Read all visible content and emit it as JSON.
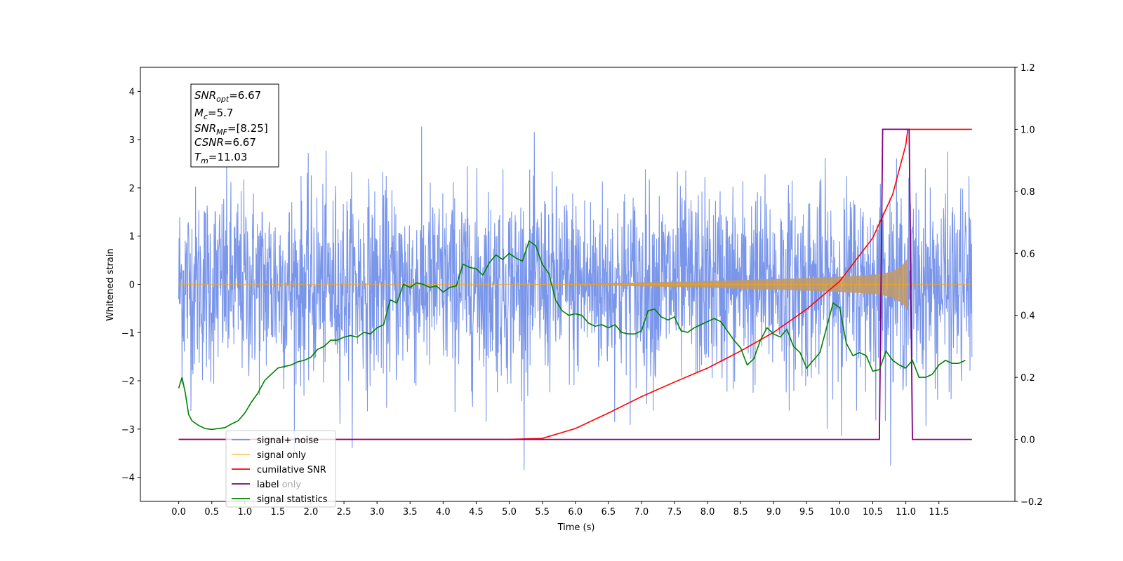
{
  "chart_data": {
    "type": "line",
    "xlabel": "Time (s)",
    "ylabel": "Whitened strain",
    "ylim_left": [
      -4.5,
      4.5
    ],
    "ylim_right": [
      -0.2,
      1.2
    ],
    "xlim": [
      -0.58,
      12.65
    ],
    "x_ticks": [
      "0.0",
      "0.5",
      "1.0",
      "1.5",
      "2.0",
      "2.5",
      "3.0",
      "3.5",
      "4.0",
      "4.5",
      "5.0",
      "5.5",
      "6.0",
      "6.5",
      "7.0",
      "7.5",
      "8.0",
      "8.5",
      "9.0",
      "9.5",
      "10.0",
      "10.5",
      "11.0",
      "11.5"
    ],
    "y_ticks_left": [
      "4",
      "3",
      "2",
      "1",
      "0",
      "−1",
      "−2",
      "−3",
      "−4"
    ],
    "y_ticks_right": [
      "1.2",
      "1.0",
      "0.8",
      "0.6",
      "0.4",
      "0.2",
      "0.0",
      "−0.2"
    ],
    "grid": false,
    "legend_position": "lower-left",
    "annotation": {
      "snr_opt": {
        "base": "SNR",
        "sub": "opt",
        "value": "=6.67"
      },
      "mc": {
        "base": "M",
        "sub": "c",
        "value": "=5.7"
      },
      "snr_mf": {
        "base": "SNR",
        "sub": "MF",
        "value": "=[8.25]"
      },
      "csnr": {
        "base": "CSNR",
        "value": "=6.67"
      },
      "tm": {
        "base": "T",
        "sub": "m",
        "value": "=11.03"
      }
    },
    "noise_stats": {
      "t_start": 0.0,
      "t_end": 12.0,
      "mean": 0.0,
      "std": 1.0,
      "max": 4.1,
      "min": -3.85
    },
    "signal_envelope": {
      "x": [
        0.0,
        5.0,
        6.0,
        7.0,
        8.0,
        9.0,
        9.5,
        10.0,
        10.3,
        10.6,
        10.8,
        10.95,
        11.03
      ],
      "amplitude": [
        0.0,
        0.0,
        0.01,
        0.04,
        0.07,
        0.11,
        0.13,
        0.16,
        0.18,
        0.21,
        0.27,
        0.4,
        0.55
      ]
    },
    "series": [
      {
        "name": "signal+ noise",
        "axis": "left",
        "color": "#4169e1",
        "kind": "noise"
      },
      {
        "name": "signal only",
        "axis": "left",
        "color": "#ffa500",
        "kind": "chirp"
      },
      {
        "name": "cumilative SNR",
        "axis": "right",
        "color": "#ff0000",
        "x": [
          0.0,
          5.0,
          5.5,
          6.0,
          6.5,
          7.0,
          7.5,
          8.0,
          8.5,
          9.0,
          9.5,
          10.0,
          10.5,
          10.8,
          11.0,
          11.03,
          11.5,
          12.0
        ],
        "y": [
          0.0,
          0.0,
          0.003,
          0.035,
          0.085,
          0.138,
          0.185,
          0.23,
          0.285,
          0.345,
          0.42,
          0.51,
          0.65,
          0.79,
          0.95,
          1.0,
          1.0,
          1.0
        ]
      },
      {
        "name": "label",
        "axis": "right",
        "color": "#800080",
        "x": [
          0.0,
          10.6,
          10.65,
          11.05,
          11.1,
          12.0
        ],
        "y": [
          0.0,
          0.0,
          1.0,
          1.0,
          0.0,
          0.0
        ]
      },
      {
        "name": "label only",
        "axis": "right",
        "color": "#000000",
        "kind": "legend-only"
      },
      {
        "name": "signal statistics",
        "axis": "right",
        "color": "#008000",
        "x": [
          0.0,
          0.05,
          0.1,
          0.15,
          0.2,
          0.3,
          0.4,
          0.5,
          0.6,
          0.7,
          0.8,
          0.9,
          1.0,
          1.1,
          1.2,
          1.3,
          1.4,
          1.5,
          1.6,
          1.7,
          1.8,
          1.9,
          2.0,
          2.1,
          2.2,
          2.3,
          2.4,
          2.5,
          2.6,
          2.7,
          2.8,
          2.9,
          3.0,
          3.1,
          3.2,
          3.3,
          3.4,
          3.5,
          3.6,
          3.7,
          3.8,
          3.9,
          4.0,
          4.1,
          4.2,
          4.3,
          4.4,
          4.5,
          4.6,
          4.7,
          4.8,
          4.9,
          5.0,
          5.1,
          5.2,
          5.3,
          5.4,
          5.5,
          5.6,
          5.7,
          5.8,
          5.9,
          6.0,
          6.1,
          6.2,
          6.3,
          6.4,
          6.5,
          6.6,
          6.7,
          6.8,
          6.9,
          7.0,
          7.1,
          7.2,
          7.3,
          7.4,
          7.5,
          7.6,
          7.7,
          7.8,
          7.9,
          8.0,
          8.1,
          8.2,
          8.3,
          8.4,
          8.5,
          8.6,
          8.7,
          8.8,
          8.9,
          9.0,
          9.1,
          9.2,
          9.3,
          9.4,
          9.5,
          9.6,
          9.7,
          9.8,
          9.9,
          10.0,
          10.1,
          10.2,
          10.3,
          10.4,
          10.5,
          10.6,
          10.7,
          10.8,
          10.9,
          11.0,
          11.1,
          11.2,
          11.3,
          11.4,
          11.5,
          11.6,
          11.7,
          11.8,
          11.9
        ],
        "y": [
          0.165,
          0.2,
          0.15,
          0.08,
          0.06,
          0.045,
          0.035,
          0.032,
          0.035,
          0.038,
          0.05,
          0.06,
          0.085,
          0.12,
          0.15,
          0.19,
          0.21,
          0.23,
          0.235,
          0.24,
          0.25,
          0.255,
          0.265,
          0.29,
          0.3,
          0.32,
          0.32,
          0.33,
          0.335,
          0.33,
          0.345,
          0.34,
          0.36,
          0.37,
          0.45,
          0.44,
          0.5,
          0.49,
          0.505,
          0.5,
          0.49,
          0.495,
          0.475,
          0.49,
          0.495,
          0.565,
          0.555,
          0.55,
          0.53,
          0.57,
          0.595,
          0.58,
          0.6,
          0.585,
          0.575,
          0.64,
          0.625,
          0.565,
          0.535,
          0.45,
          0.415,
          0.4,
          0.405,
          0.4,
          0.375,
          0.365,
          0.37,
          0.36,
          0.37,
          0.345,
          0.34,
          0.34,
          0.35,
          0.415,
          0.42,
          0.395,
          0.385,
          0.395,
          0.35,
          0.345,
          0.36,
          0.37,
          0.38,
          0.39,
          0.38,
          0.35,
          0.32,
          0.295,
          0.24,
          0.26,
          0.32,
          0.36,
          0.34,
          0.33,
          0.355,
          0.3,
          0.28,
          0.23,
          0.255,
          0.28,
          0.36,
          0.44,
          0.425,
          0.31,
          0.27,
          0.28,
          0.27,
          0.22,
          0.225,
          0.285,
          0.255,
          0.24,
          0.23,
          0.255,
          0.2,
          0.2,
          0.21,
          0.24,
          0.255,
          0.245,
          0.245,
          0.255
        ]
      }
    ]
  }
}
